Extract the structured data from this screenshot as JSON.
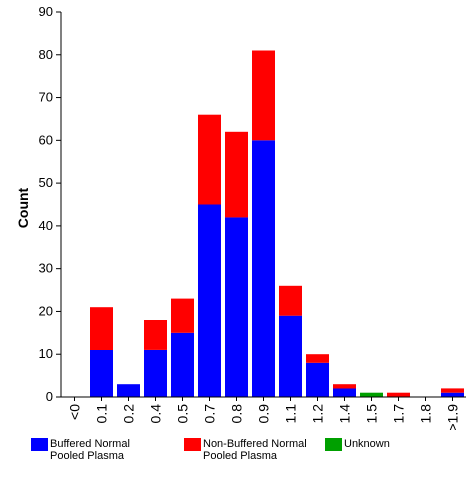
{
  "chart_data": {
    "type": "bar",
    "stacked": true,
    "title": "",
    "xlabel": "",
    "ylabel": "Count",
    "ylim": [
      0,
      90
    ],
    "yticks": [
      0,
      10,
      20,
      30,
      40,
      50,
      60,
      70,
      80,
      90
    ],
    "grid": false,
    "legend_position": "bottom",
    "categories": [
      "<0",
      "0.1",
      "0.2",
      "0.4",
      "0.5",
      "0.7",
      "0.8",
      "0.9",
      "1.1",
      "1.2",
      "1.4",
      "1.5",
      "1.7",
      "1.8",
      ">1.9"
    ],
    "series": [
      {
        "name": "Buffered Normal Pooled Plasma",
        "color": "#0000ff",
        "values": [
          0,
          11,
          3,
          11,
          15,
          45,
          42,
          60,
          19,
          8,
          2,
          0,
          0,
          0,
          1
        ]
      },
      {
        "name": "Non-Buffered Normal Pooled Plasma",
        "color": "#ff0000",
        "values": [
          0,
          10,
          0,
          7,
          8,
          21,
          20,
          21,
          7,
          2,
          1,
          0,
          1,
          0,
          1
        ]
      },
      {
        "name": "Unknown",
        "color": "#00a000",
        "values": [
          0,
          0,
          0,
          0,
          0,
          0,
          0,
          0,
          0,
          0,
          0,
          1,
          0,
          0,
          0
        ]
      }
    ]
  }
}
